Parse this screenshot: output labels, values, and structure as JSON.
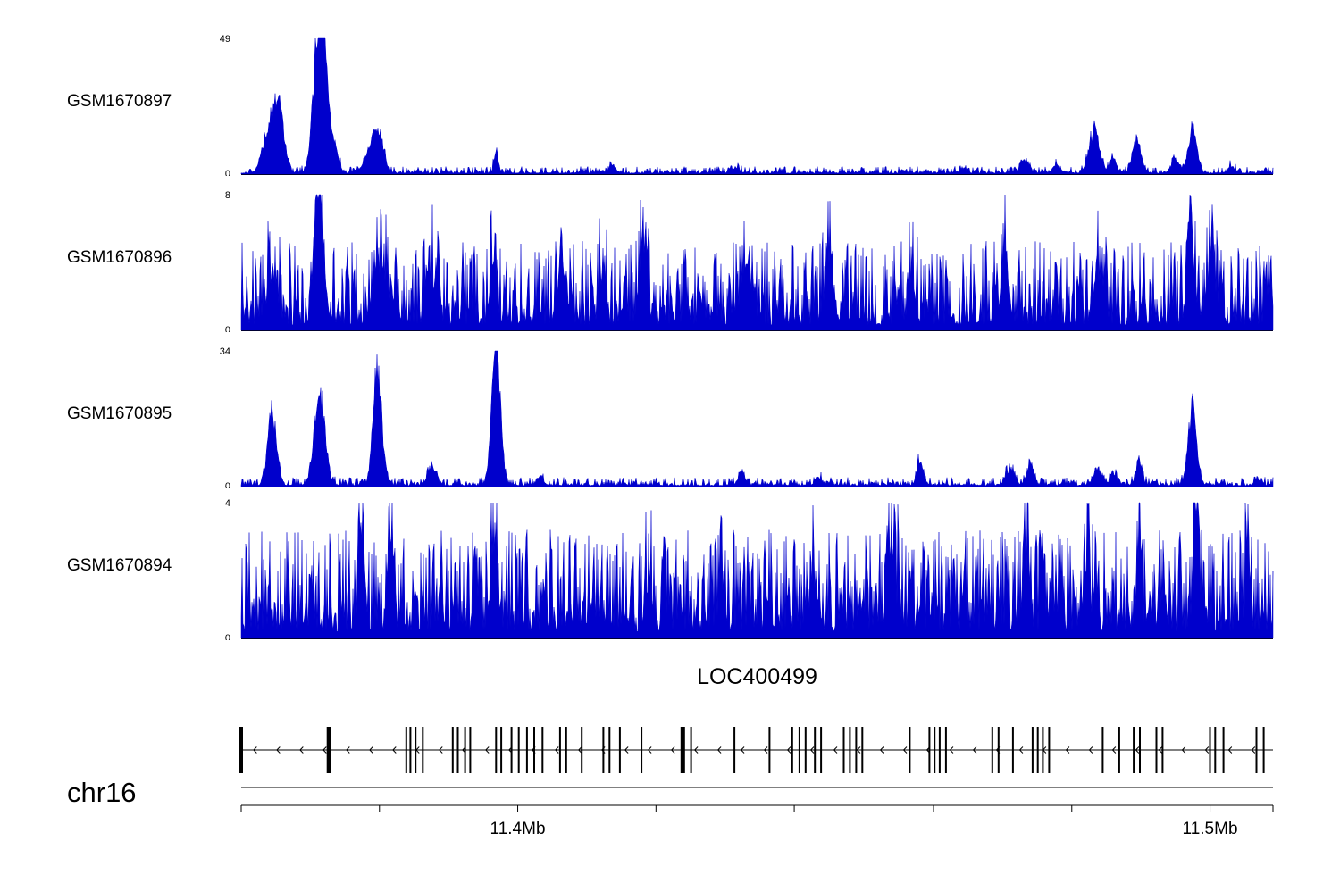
{
  "colors": {
    "signal": "#0000cc",
    "ink": "#000000",
    "background": "#ffffff"
  },
  "chart_data": {
    "type": "area",
    "title": "",
    "description": "Genome browser coverage tracks over chr16 with gene model LOC400499 (minus strand) and megabase scale axis",
    "region": {
      "chromosome": "chr16"
    },
    "x_axis": {
      "ticks": [
        {
          "f": 0.0,
          "label": ""
        },
        {
          "f": 0.134,
          "label": ""
        },
        {
          "f": 0.268,
          "label": "11.4Mb"
        },
        {
          "f": 0.402,
          "label": ""
        },
        {
          "f": 0.536,
          "label": ""
        },
        {
          "f": 0.671,
          "label": ""
        },
        {
          "f": 0.805,
          "label": ""
        },
        {
          "f": 0.939,
          "label": "11.5Mb"
        },
        {
          "f": 1.0,
          "label": ""
        }
      ]
    },
    "tracks": [
      {
        "name": "GSM1670897",
        "ymax": 49,
        "ymin": 0,
        "seed": 97,
        "noise": {
          "base": 0.006,
          "amp": 0.05,
          "exp": 2.2
        },
        "peaks": [
          [
            0.03,
            0.42,
            0.007
          ],
          [
            0.038,
            0.25,
            0.004
          ],
          [
            0.075,
            1.0,
            0.005
          ],
          [
            0.081,
            0.55,
            0.004
          ],
          [
            0.09,
            0.18,
            0.004
          ],
          [
            0.125,
            0.12,
            0.006
          ],
          [
            0.133,
            0.26,
            0.005
          ],
          [
            0.247,
            0.16,
            0.002
          ],
          [
            0.36,
            0.05,
            0.003
          ],
          [
            0.48,
            0.04,
            0.003
          ],
          [
            0.7,
            0.04,
            0.003
          ],
          [
            0.76,
            0.08,
            0.004
          ],
          [
            0.79,
            0.06,
            0.003
          ],
          [
            0.827,
            0.3,
            0.005
          ],
          [
            0.845,
            0.1,
            0.003
          ],
          [
            0.868,
            0.22,
            0.004
          ],
          [
            0.905,
            0.1,
            0.003
          ],
          [
            0.922,
            0.32,
            0.004
          ],
          [
            0.96,
            0.05,
            0.003
          ]
        ]
      },
      {
        "name": "GSM1670896",
        "ymax": 8,
        "ymin": 0,
        "seed": 96,
        "noise": {
          "base": 0.04,
          "amp": 0.62,
          "exp": 1.7
        },
        "peaks": [
          [
            0.03,
            0.35,
            0.005
          ],
          [
            0.075,
            0.95,
            0.004
          ],
          [
            0.135,
            0.45,
            0.006
          ],
          [
            0.185,
            0.3,
            0.004
          ],
          [
            0.245,
            0.42,
            0.003
          ],
          [
            0.31,
            0.4,
            0.004
          ],
          [
            0.35,
            0.32,
            0.003
          ],
          [
            0.39,
            0.35,
            0.004
          ],
          [
            0.49,
            0.42,
            0.005
          ],
          [
            0.57,
            0.38,
            0.004
          ],
          [
            0.65,
            0.35,
            0.003
          ],
          [
            0.74,
            0.38,
            0.004
          ],
          [
            0.83,
            0.35,
            0.004
          ],
          [
            0.92,
            0.8,
            0.003
          ],
          [
            0.94,
            0.45,
            0.003
          ]
        ]
      },
      {
        "name": "GSM1670895",
        "ymax": 34,
        "ymin": 0,
        "seed": 95,
        "noise": {
          "base": 0.008,
          "amp": 0.06,
          "exp": 2.2
        },
        "peaks": [
          [
            0.03,
            0.55,
            0.004
          ],
          [
            0.076,
            0.68,
            0.005
          ],
          [
            0.132,
            0.88,
            0.004
          ],
          [
            0.185,
            0.13,
            0.004
          ],
          [
            0.247,
            1.0,
            0.004
          ],
          [
            0.29,
            0.06,
            0.003
          ],
          [
            0.485,
            0.1,
            0.003
          ],
          [
            0.56,
            0.05,
            0.003
          ],
          [
            0.658,
            0.18,
            0.003
          ],
          [
            0.745,
            0.12,
            0.004
          ],
          [
            0.765,
            0.16,
            0.003
          ],
          [
            0.83,
            0.1,
            0.004
          ],
          [
            0.845,
            0.08,
            0.003
          ],
          [
            0.87,
            0.16,
            0.003
          ],
          [
            0.922,
            0.58,
            0.004
          ],
          [
            0.985,
            0.04,
            0.003
          ]
        ]
      },
      {
        "name": "GSM1670894",
        "ymax": 4,
        "ymin": 0,
        "seed": 94,
        "noise": {
          "base": 0.05,
          "amp": 0.75,
          "exp": 1.5
        },
        "peaks": [
          [
            0.117,
            0.55,
            0.003
          ],
          [
            0.145,
            0.5,
            0.002
          ],
          [
            0.245,
            0.55,
            0.003
          ],
          [
            0.395,
            0.35,
            0.003
          ],
          [
            0.465,
            0.35,
            0.002
          ],
          [
            0.555,
            0.35,
            0.003
          ],
          [
            0.63,
            0.6,
            0.004
          ],
          [
            0.76,
            0.4,
            0.003
          ],
          [
            0.82,
            0.45,
            0.003
          ],
          [
            0.87,
            0.45,
            0.002
          ],
          [
            0.926,
            0.55,
            0.003
          ],
          [
            0.975,
            0.35,
            0.002
          ]
        ]
      }
    ],
    "gene_track": {
      "name": "LOC400499",
      "strand": "-",
      "exons": [
        [
          0.0,
          4
        ],
        [
          0.085,
          5
        ],
        [
          0.16,
          2
        ],
        [
          0.164,
          2
        ],
        [
          0.169,
          2
        ],
        [
          0.176,
          2
        ],
        [
          0.205,
          2
        ],
        [
          0.21,
          2
        ],
        [
          0.217,
          2
        ],
        [
          0.222,
          2
        ],
        [
          0.247,
          2
        ],
        [
          0.252,
          2
        ],
        [
          0.262,
          2
        ],
        [
          0.269,
          2
        ],
        [
          0.277,
          2
        ],
        [
          0.284,
          2
        ],
        [
          0.292,
          2
        ],
        [
          0.309,
          2
        ],
        [
          0.315,
          2
        ],
        [
          0.33,
          2
        ],
        [
          0.351,
          2
        ],
        [
          0.357,
          2
        ],
        [
          0.367,
          2
        ],
        [
          0.388,
          2
        ],
        [
          0.428,
          5
        ],
        [
          0.436,
          2
        ],
        [
          0.478,
          2
        ],
        [
          0.512,
          2
        ],
        [
          0.534,
          2
        ],
        [
          0.541,
          2
        ],
        [
          0.547,
          2
        ],
        [
          0.556,
          2
        ],
        [
          0.562,
          2
        ],
        [
          0.584,
          2
        ],
        [
          0.59,
          2
        ],
        [
          0.596,
          2
        ],
        [
          0.602,
          2
        ],
        [
          0.648,
          2
        ],
        [
          0.667,
          2
        ],
        [
          0.672,
          2
        ],
        [
          0.677,
          2
        ],
        [
          0.683,
          2
        ],
        [
          0.728,
          2
        ],
        [
          0.734,
          2
        ],
        [
          0.748,
          2
        ],
        [
          0.767,
          2
        ],
        [
          0.772,
          2
        ],
        [
          0.777,
          2
        ],
        [
          0.783,
          2
        ],
        [
          0.835,
          2
        ],
        [
          0.851,
          2
        ],
        [
          0.865,
          2
        ],
        [
          0.871,
          2
        ],
        [
          0.887,
          2
        ],
        [
          0.893,
          2
        ],
        [
          0.939,
          2
        ],
        [
          0.944,
          2
        ],
        [
          0.952,
          2
        ],
        [
          0.984,
          2
        ],
        [
          0.991,
          2
        ]
      ]
    }
  }
}
